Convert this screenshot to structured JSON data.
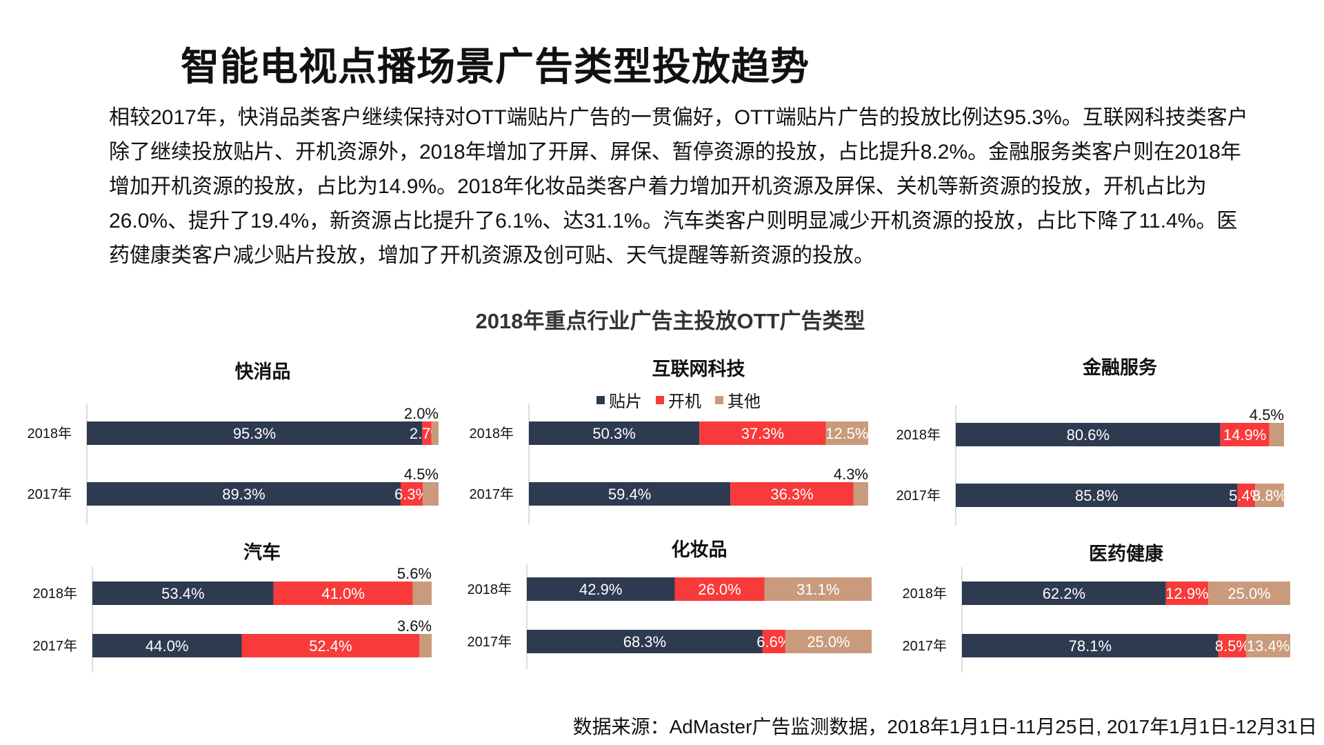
{
  "page": {
    "title": "智能电视点播场景广告类型投放趋势",
    "intro": "相较2017年，快消品类客户继续保持对OTT端贴片广告的一贯偏好，OTT端贴片广告的投放比例达95.3%。互联网科技类客户除了继续投放贴片、开机资源外，2018年增加了开屏、屏保、暂停资源的投放，占比提升8.2%。金融服务类客户则在2018年增加开机资源的投放，占比为14.9%。2018年化妆品类客户着力增加开机资源及屏保、关机等新资源的投放，开机占比为26.0%、提升了19.4%，新资源占比提升了6.1%、达31.1%。汽车类客户则明显减少开机资源的投放，占比下降了11.4%。医药健康类客户减少贴片投放，增加了开机资源及创可贴、天气提醒等新资源的投放。",
    "source": "数据来源：AdMaster广告监测数据，2018年1月1日-11月25日, 2017年1月1日-12月31日"
  },
  "colors": {
    "贴片": "#2e3a4f",
    "开机": "#f83a3a",
    "其他": "#c99a7c"
  },
  "chart_data": {
    "type": "bar",
    "orientation": "horizontal",
    "stacked": "100%",
    "title": "2018年重点行业广告主投放OTT广告类型",
    "legend": [
      "贴片",
      "开机",
      "其他"
    ],
    "legend_position": "top-center",
    "panels": [
      {
        "title": "快消品",
        "categories": [
          "2018年",
          "2017年"
        ],
        "series": [
          {
            "name": "贴片",
            "values": [
              95.3,
              89.3
            ],
            "labels": [
              "95.3%",
              "89.3%"
            ]
          },
          {
            "name": "开机",
            "values": [
              2.7,
              6.3
            ],
            "labels": [
              "2.7%",
              "6.3%"
            ]
          },
          {
            "name": "其他",
            "values": [
              2.0,
              4.5
            ],
            "labels": [
              "2.0%",
              "4.5%"
            ]
          }
        ]
      },
      {
        "title": "互联网科技",
        "categories": [
          "2018年",
          "2017年"
        ],
        "series": [
          {
            "name": "贴片",
            "values": [
              50.3,
              59.4
            ],
            "labels": [
              "50.3%",
              "59.4%"
            ]
          },
          {
            "name": "开机",
            "values": [
              37.3,
              36.3
            ],
            "labels": [
              "37.3%",
              "36.3%"
            ]
          },
          {
            "name": "其他",
            "values": [
              12.5,
              4.3
            ],
            "labels": [
              "12.5%",
              "4.3%"
            ]
          }
        ]
      },
      {
        "title": "金融服务",
        "categories": [
          "2018年",
          "2017年"
        ],
        "series": [
          {
            "name": "贴片",
            "values": [
              80.6,
              85.8
            ],
            "labels": [
              "80.6%",
              "85.8%"
            ]
          },
          {
            "name": "开机",
            "values": [
              14.9,
              5.4
            ],
            "labels": [
              "14.9%",
              "5.4%"
            ]
          },
          {
            "name": "其他",
            "values": [
              4.5,
              8.8
            ],
            "labels": [
              "4.5%",
              "8.8%"
            ]
          }
        ]
      },
      {
        "title": "汽车",
        "categories": [
          "2018年",
          "2017年"
        ],
        "series": [
          {
            "name": "贴片",
            "values": [
              53.4,
              44.0
            ],
            "labels": [
              "53.4%",
              "44.0%"
            ]
          },
          {
            "name": "开机",
            "values": [
              41.0,
              52.4
            ],
            "labels": [
              "41.0%",
              "52.4%"
            ]
          },
          {
            "name": "其他",
            "values": [
              5.6,
              3.6
            ],
            "labels": [
              "5.6%",
              "3.6%"
            ]
          }
        ]
      },
      {
        "title": "化妆品",
        "categories": [
          "2018年",
          "2017年"
        ],
        "series": [
          {
            "name": "贴片",
            "values": [
              42.9,
              68.3
            ],
            "labels": [
              "42.9%",
              "68.3%"
            ]
          },
          {
            "name": "开机",
            "values": [
              26.0,
              6.6
            ],
            "labels": [
              "26.0%",
              "6.6%"
            ]
          },
          {
            "name": "其他",
            "values": [
              31.1,
              25.0
            ],
            "labels": [
              "31.1%",
              "25.0%"
            ]
          }
        ]
      },
      {
        "title": "医药健康",
        "categories": [
          "2018年",
          "2017年"
        ],
        "series": [
          {
            "name": "贴片",
            "values": [
              62.2,
              78.1
            ],
            "labels": [
              "62.2%",
              "78.1%"
            ]
          },
          {
            "name": "开机",
            "values": [
              12.9,
              8.5
            ],
            "labels": [
              "12.9%",
              "8.5%"
            ]
          },
          {
            "name": "其他",
            "values": [
              25.0,
              13.4
            ],
            "labels": [
              "25.0%",
              "13.4%"
            ]
          }
        ]
      }
    ]
  }
}
